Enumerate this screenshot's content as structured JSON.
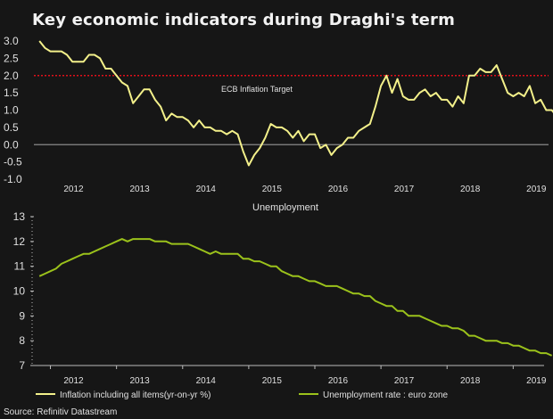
{
  "title": "Key economic indicators during Draghi's term",
  "source": "Source: Refinitiv Datastream",
  "colors": {
    "inflation": "#f3f08a",
    "unemployment": "#9bc21b",
    "target": "#e0101a",
    "zero": "#8a8a8a",
    "background": "#161616"
  },
  "chart_data": [
    {
      "type": "line",
      "title": "",
      "start": "2011-11",
      "frequency": "monthly",
      "ylabel": "",
      "ylim": [
        -1.0,
        3.0
      ],
      "yticks": [
        "3.0",
        "2.5",
        "2.0",
        "1.5",
        "1.0",
        "0.5",
        "0.0",
        "-0.5",
        "-1.0"
      ],
      "ytick_values": [
        3.0,
        2.5,
        2.0,
        1.5,
        1.0,
        0.5,
        0.0,
        -0.5,
        -1.0
      ],
      "xticks": [
        "2012",
        "2013",
        "2014",
        "2015",
        "2016",
        "2017",
        "2018",
        "2019"
      ],
      "annotation": {
        "label": "ECB Inflation Target",
        "value": 2.0
      },
      "series": [
        {
          "name": "Inflation including all items(yr-on-yr %)",
          "values": [
            3.0,
            2.8,
            2.7,
            2.7,
            2.7,
            2.6,
            2.4,
            2.4,
            2.4,
            2.6,
            2.6,
            2.5,
            2.2,
            2.2,
            2.0,
            1.8,
            1.7,
            1.2,
            1.4,
            1.6,
            1.6,
            1.3,
            1.1,
            0.7,
            0.9,
            0.8,
            0.8,
            0.7,
            0.5,
            0.7,
            0.5,
            0.5,
            0.4,
            0.4,
            0.3,
            0.4,
            0.3,
            -0.2,
            -0.6,
            -0.3,
            -0.1,
            0.2,
            0.6,
            0.5,
            0.5,
            0.4,
            0.2,
            0.4,
            0.1,
            0.3,
            0.3,
            -0.1,
            0.0,
            -0.3,
            -0.1,
            0.0,
            0.2,
            0.2,
            0.4,
            0.5,
            0.6,
            1.1,
            1.7,
            2.0,
            1.5,
            1.9,
            1.4,
            1.3,
            1.3,
            1.5,
            1.6,
            1.4,
            1.5,
            1.3,
            1.3,
            1.1,
            1.4,
            1.2,
            2.0,
            2.0,
            2.2,
            2.1,
            2.1,
            2.3,
            1.9,
            1.5,
            1.4,
            1.5,
            1.4,
            1.7,
            1.2,
            1.3,
            1.0,
            1.0,
            0.8
          ]
        }
      ]
    },
    {
      "type": "line",
      "title": "Unemployment",
      "start": "2011-11",
      "frequency": "monthly",
      "ylim": [
        7,
        13
      ],
      "yticks": [
        "13",
        "12",
        "11",
        "10",
        "9",
        "8",
        "7"
      ],
      "ytick_values": [
        13,
        12,
        11,
        10,
        9,
        8,
        7
      ],
      "xticks": [
        "2012",
        "2013",
        "2014",
        "2015",
        "2016",
        "2017",
        "2018",
        "2019"
      ],
      "series": [
        {
          "name": "Unemployment rate : euro zone",
          "values": [
            10.6,
            10.7,
            10.8,
            10.9,
            11.1,
            11.2,
            11.3,
            11.4,
            11.5,
            11.5,
            11.6,
            11.7,
            11.8,
            11.9,
            12.0,
            12.1,
            12.0,
            12.1,
            12.1,
            12.1,
            12.1,
            12.0,
            12.0,
            12.0,
            11.9,
            11.9,
            11.9,
            11.9,
            11.8,
            11.7,
            11.6,
            11.5,
            11.6,
            11.5,
            11.5,
            11.5,
            11.5,
            11.3,
            11.3,
            11.2,
            11.2,
            11.1,
            11.0,
            11.0,
            10.8,
            10.7,
            10.6,
            10.6,
            10.5,
            10.4,
            10.4,
            10.3,
            10.2,
            10.2,
            10.2,
            10.1,
            10.0,
            9.9,
            9.9,
            9.8,
            9.8,
            9.6,
            9.5,
            9.4,
            9.4,
            9.2,
            9.2,
            9.0,
            9.0,
            9.0,
            8.9,
            8.8,
            8.7,
            8.6,
            8.6,
            8.5,
            8.5,
            8.4,
            8.2,
            8.2,
            8.1,
            8.0,
            8.0,
            8.0,
            7.9,
            7.9,
            7.8,
            7.8,
            7.7,
            7.6,
            7.6,
            7.5,
            7.5,
            7.4
          ]
        }
      ]
    }
  ]
}
